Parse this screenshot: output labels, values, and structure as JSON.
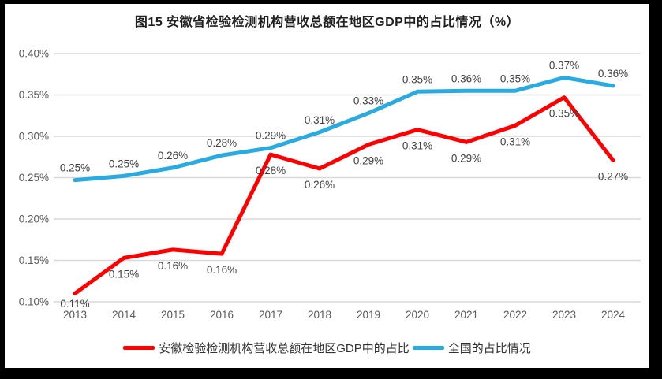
{
  "title": "图15 安徽省检验检测机构营收总额在地区GDP中的占比情况（%）",
  "frame": {
    "border_color": "#000000",
    "background": "#ffffff"
  },
  "chart_data": {
    "type": "line",
    "x": [
      "2013",
      "2014",
      "2015",
      "2016",
      "2017",
      "2018",
      "2019",
      "2020",
      "2021",
      "2022",
      "2023",
      "2024"
    ],
    "series": [
      {
        "name": "安徽检验检测机构营收总额在地区GDP中的占比",
        "color": "#ff0000",
        "values": [
          0.11,
          0.15,
          0.16,
          0.16,
          0.28,
          0.26,
          0.29,
          0.31,
          0.29,
          0.31,
          0.35,
          0.27
        ],
        "labels": [
          "0.11%",
          "0.15%",
          "0.16%",
          "0.16%",
          "0.28%",
          "0.26%",
          "0.29%",
          "0.31%",
          "0.29%",
          "0.31%",
          "0.35%",
          "0.27%"
        ],
        "values_est": [
          0.11,
          0.153,
          0.163,
          0.158,
          0.278,
          0.261,
          0.29,
          0.308,
          0.293,
          0.313,
          0.347,
          0.271
        ],
        "label_position": "below"
      },
      {
        "name": "全国的占比情况",
        "color": "#29abe2",
        "values": [
          0.25,
          0.25,
          0.26,
          0.28,
          0.29,
          0.31,
          0.33,
          0.35,
          0.36,
          0.35,
          0.37,
          0.36
        ],
        "labels": [
          "0.25%",
          "0.25%",
          "0.26%",
          "0.28%",
          "0.29%",
          "0.31%",
          "0.33%",
          "0.35%",
          "0.36%",
          "0.35%",
          "0.37%",
          "0.36%"
        ],
        "values_est": [
          0.247,
          0.252,
          0.262,
          0.277,
          0.286,
          0.305,
          0.328,
          0.354,
          0.355,
          0.355,
          0.371,
          0.361
        ],
        "label_position": "above"
      }
    ],
    "ylim": [
      0.1,
      0.4
    ],
    "ytick_step": 0.05,
    "yticks": [
      "0.40%",
      "0.35%",
      "0.30%",
      "0.25%",
      "0.20%",
      "0.15%",
      "0.10%"
    ],
    "grid": true,
    "gridline_color": "#d9d9d9",
    "axis_label_color": "#595959",
    "data_label_color": "#404040",
    "legend_position": "bottom"
  }
}
